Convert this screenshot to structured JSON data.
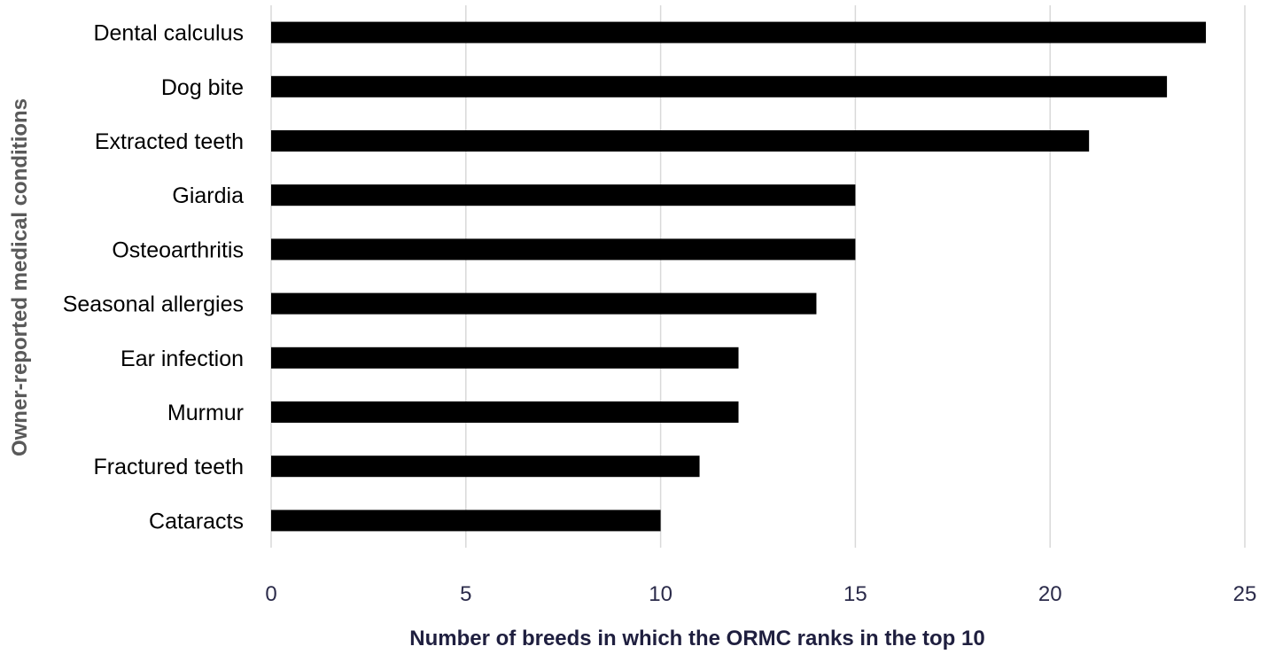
{
  "chart_data": {
    "type": "bar",
    "orientation": "horizontal",
    "categories": [
      "Dental calculus",
      "Dog bite",
      "Extracted teeth",
      "Giardia",
      "Osteoarthritis",
      "Seasonal allergies",
      "Ear infection",
      "Murmur",
      "Fractured teeth",
      "Cataracts"
    ],
    "values": [
      24,
      23,
      21,
      15,
      15,
      14,
      12,
      12,
      11,
      10
    ],
    "xlabel": "Number of breeds in which the ORMC ranks in the top 10",
    "ylabel": "Owner-reported medical conditions",
    "xlim": [
      0,
      25
    ],
    "xticks": [
      "0",
      "5",
      "10",
      "15",
      "20",
      "25"
    ],
    "grid": "vertical",
    "legend": "none",
    "colors": {
      "bar": "#000000",
      "grid": "#d9d9d9",
      "tick_text": "#2b2b4a",
      "xlabel_text": "#1f1f3f",
      "ylabel_text": "#595959"
    }
  }
}
